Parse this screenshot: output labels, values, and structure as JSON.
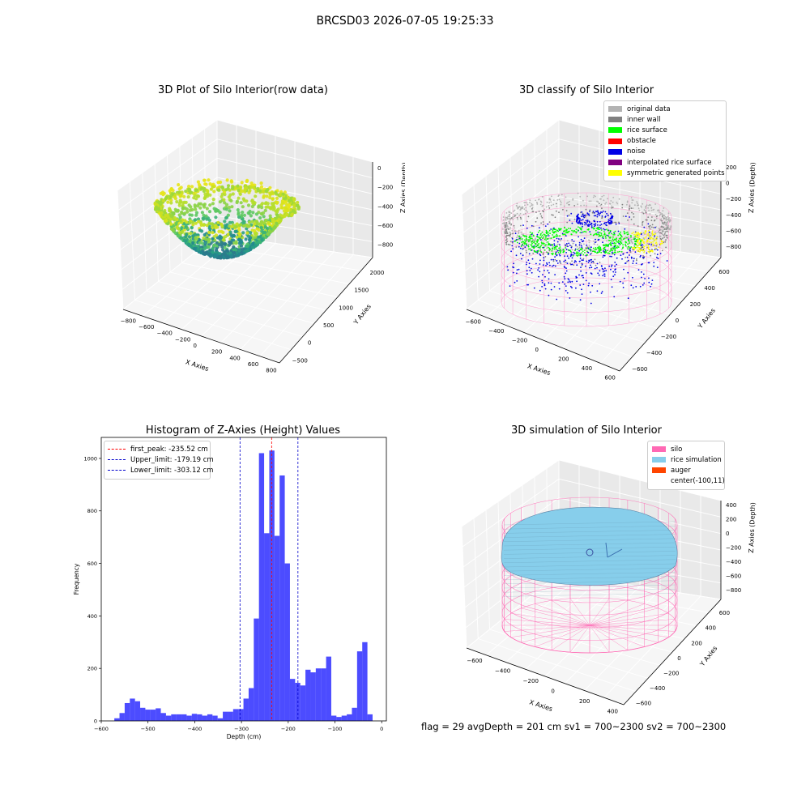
{
  "suptitle": "BRCSD03 2026-07-05 19:25:33",
  "panels": {
    "raw": {
      "title": "3D Plot of Silo Interior(row data)",
      "xlabel": "X Axies",
      "ylabel": "Y Axies",
      "zlabel": "Z Axies (Depth)",
      "xticks": [
        "−800",
        "−600",
        "−400",
        "−200",
        "0",
        "200",
        "400",
        "600",
        "800"
      ],
      "yticks": [
        "−500",
        "0",
        "500",
        "1000",
        "1500",
        "2000"
      ],
      "zticks": [
        "0",
        "−200",
        "−400",
        "−600",
        "−800"
      ]
    },
    "classify": {
      "title": "3D classify of Silo Interior",
      "xlabel": "X Axies",
      "ylabel": "Y Axies",
      "zlabel": "Z Axies (Depth)",
      "xticks": [
        "−600",
        "−400",
        "−200",
        "0",
        "200",
        "400",
        "600"
      ],
      "yticks": [
        "−600",
        "−400",
        "−200",
        "0",
        "200",
        "400",
        "600"
      ],
      "zticks": [
        "200",
        "0",
        "−200",
        "−400",
        "−600",
        "−800"
      ],
      "legend": [
        {
          "label": "original data",
          "color": "#b3b3b3"
        },
        {
          "label": "inner wall",
          "color": "#808080"
        },
        {
          "label": "rice surface",
          "color": "#00ff00"
        },
        {
          "label": "obstacle",
          "color": "#ff0000"
        },
        {
          "label": "noise",
          "color": "#0000e6"
        },
        {
          "label": "interpolated rice surface",
          "color": "#800080"
        },
        {
          "label": "symmetric generated points",
          "color": "#ffff00"
        }
      ]
    },
    "simulation": {
      "title": "3D simulation of Silo Interior",
      "xlabel": "X Axies",
      "ylabel": "Y Axies",
      "zlabel": "Z Axies (Depth)",
      "xticks": [
        "−600",
        "−400",
        "−200",
        "0",
        "200",
        "400"
      ],
      "yticks": [
        "−600",
        "−400",
        "−200",
        "0",
        "200",
        "400",
        "600"
      ],
      "zticks": [
        "400",
        "200",
        "0",
        "−200",
        "−400",
        "−600",
        "−800"
      ],
      "legend": [
        {
          "label": "silo",
          "color": "#ff69b4"
        },
        {
          "label": "rice simulation",
          "color": "#87ceeb"
        },
        {
          "label": "auger",
          "color": "#ff4500"
        },
        {
          "label": "center(-100,11)",
          "color": ""
        }
      ]
    },
    "histogram": {
      "title": "Histogram of Z-Axies (Height) Values",
      "xlabel": "Depth (cm)",
      "ylabel": "Frequency",
      "legend": [
        {
          "label": "first_peak: -235.52 cm",
          "color": "#ff0000"
        },
        {
          "label": "Upper_limit: -179.19 cm",
          "color": "#0000cc"
        },
        {
          "label": "Lower_limit: -303.12 cm",
          "color": "#0000cc"
        }
      ]
    }
  },
  "chart_data": [
    {
      "type": "bar",
      "title": "Histogram of Z-Axies (Height) Values",
      "xlabel": "Depth (cm)",
      "ylabel": "Frequency",
      "xlim": [
        -600,
        10
      ],
      "ylim": [
        0,
        1080
      ],
      "xticks": [
        -600,
        -500,
        -400,
        -300,
        -200,
        -100,
        0
      ],
      "yticks": [
        0,
        200,
        400,
        600,
        800,
        1000
      ],
      "bin_start": -572,
      "bin_width": 11.05,
      "values": [
        10,
        30,
        68,
        85,
        75,
        50,
        43,
        43,
        48,
        30,
        20,
        25,
        25,
        25,
        20,
        27,
        25,
        20,
        25,
        20,
        10,
        35,
        35,
        45,
        45,
        85,
        125,
        390,
        1020,
        715,
        1030,
        705,
        935,
        600,
        160,
        145,
        135,
        195,
        185,
        200,
        200,
        245,
        20,
        15,
        20,
        25,
        50,
        265,
        300,
        25
      ],
      "color": "#0000ff",
      "vlines": [
        {
          "name": "first_peak",
          "x": -235.52,
          "color": "#ff0000"
        },
        {
          "name": "Upper_limit",
          "x": -179.19,
          "color": "#0000cc"
        },
        {
          "name": "Lower_limit",
          "x": -303.12,
          "color": "#0000cc"
        }
      ],
      "legend_position": "upper left"
    },
    {
      "type": "scatter",
      "title": "3D Plot of Silo Interior(row data)",
      "xlabel": "X Axies",
      "ylabel": "Y Axies",
      "zlabel": "Z Axies (Depth)",
      "xlim": [
        -800,
        800
      ],
      "ylim": [
        -500,
        2000
      ],
      "zlim": [
        -900,
        0
      ]
    },
    {
      "type": "scatter",
      "title": "3D classify of Silo Interior",
      "xlabel": "X Axies",
      "ylabel": "Y Axies",
      "zlabel": "Z Axies (Depth)",
      "xlim": [
        -600,
        600
      ],
      "ylim": [
        -600,
        600
      ],
      "zlim": [
        -900,
        200
      ],
      "legend_position": "upper right"
    },
    {
      "type": "area",
      "title": "3D simulation of Silo Interior",
      "xlabel": "X Axies",
      "ylabel": "Y Axies",
      "zlabel": "Z Axies (Depth)",
      "xlim": [
        -700,
        500
      ],
      "ylim": [
        -600,
        600
      ],
      "zlim": [
        -900,
        400
      ],
      "legend_position": "upper right"
    }
  ],
  "footer": "flag = 29  avgDepth = 201 cm  sv1 = 700~2300  sv2 = 700~2300"
}
